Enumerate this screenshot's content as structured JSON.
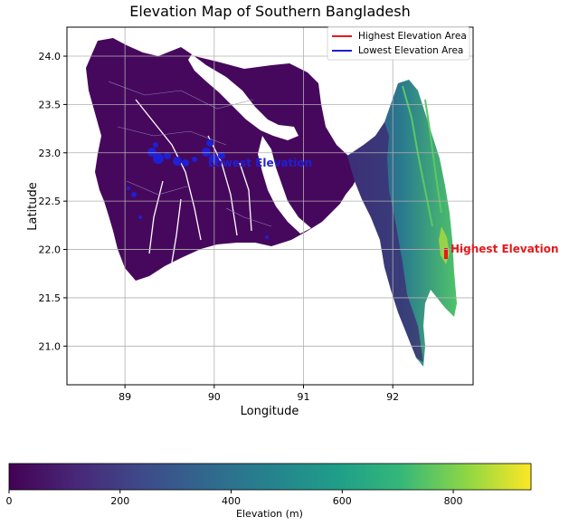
{
  "title": "Elevation Map of Southern Bangladesh",
  "axes": {
    "xlabel": "Longitude",
    "ylabel": "Latitude",
    "xticks": [
      89,
      90,
      91,
      92
    ],
    "yticks": [
      21.0,
      21.5,
      22.0,
      22.5,
      23.0,
      23.5,
      24.0
    ],
    "xlim": [
      88.35,
      92.9
    ],
    "ylim": [
      20.6,
      24.3
    ],
    "grid": true
  },
  "legend": {
    "placement": "top-right",
    "entries": [
      {
        "label": "Highest Elevation Area",
        "color": "#e41a1c"
      },
      {
        "label": "Lowest Elevation Area",
        "color": "#1f1fd6"
      }
    ]
  },
  "annotations": {
    "highest": {
      "text": "Highest Elevation",
      "lon": 92.6,
      "lat": 21.95
    },
    "lowest": {
      "text": "Lowest Elevation",
      "lon": 89.9,
      "lat": 22.85
    }
  },
  "colorbar": {
    "label": "Elevation (m)",
    "ticks": [
      0,
      200,
      400,
      600,
      800
    ],
    "min": 0,
    "max": 940,
    "colormap": "viridis",
    "stops": [
      "#440154",
      "#3b528b",
      "#21918c",
      "#5ec962",
      "#fde725"
    ]
  },
  "colors": {
    "land_low": "#46085c",
    "water": "#ffffff",
    "grid": "#b0b0b0"
  }
}
